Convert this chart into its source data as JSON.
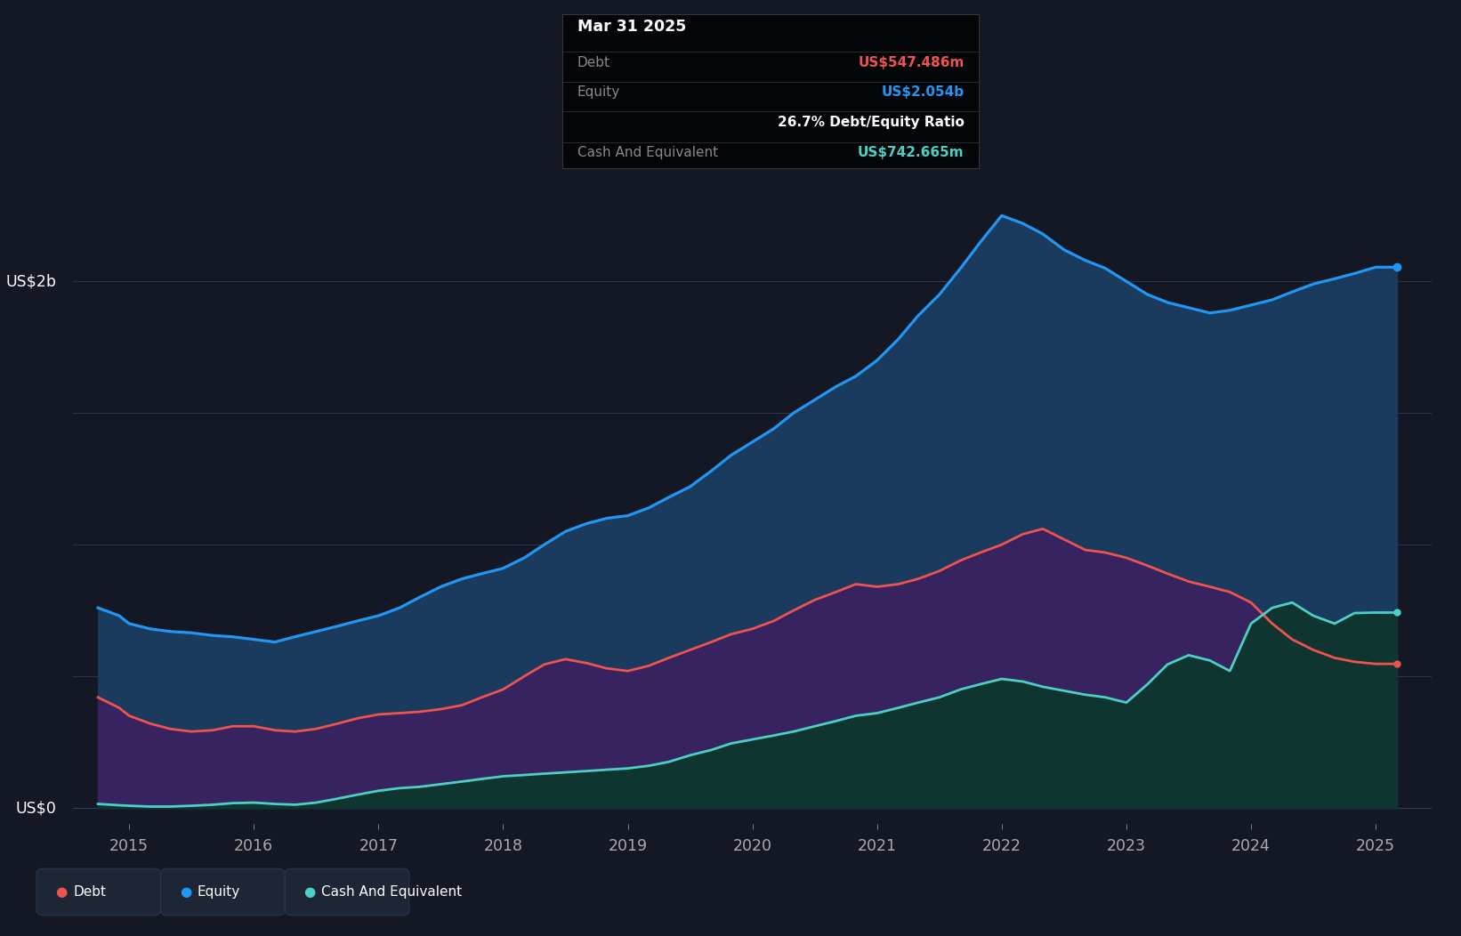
{
  "background_color": "#141824",
  "plot_bg_color": "#141824",
  "equity_color": "#2196f3",
  "debt_color": "#ef5350",
  "cash_color": "#4dd0c4",
  "grid_color": "#2a3550",
  "text_color_light": "#aaaaaa",
  "text_color_white": "#ffffff",
  "tooltip_bg": "#050505",
  "tooltip_title": "Mar 31 2025",
  "tooltip_debt_label": "Debt",
  "tooltip_debt_value": "US$547.486m",
  "tooltip_equity_label": "Equity",
  "tooltip_equity_value": "US$2.054b",
  "tooltip_ratio": "26.7% Debt/Equity Ratio",
  "tooltip_cash_label": "Cash And Equivalent",
  "tooltip_cash_value": "US$742.665m",
  "legend_debt": "Debt",
  "legend_equity": "Equity",
  "legend_cash": "Cash And Equivalent",
  "xlim": [
    2014.55,
    2025.45
  ],
  "ylim": [
    -60,
    2500
  ],
  "years": [
    2014.75,
    2014.92,
    2015.0,
    2015.17,
    2015.33,
    2015.5,
    2015.67,
    2015.83,
    2016.0,
    2016.17,
    2016.33,
    2016.5,
    2016.67,
    2016.83,
    2017.0,
    2017.17,
    2017.33,
    2017.5,
    2017.67,
    2017.83,
    2018.0,
    2018.17,
    2018.33,
    2018.5,
    2018.67,
    2018.83,
    2019.0,
    2019.17,
    2019.33,
    2019.5,
    2019.67,
    2019.83,
    2020.0,
    2020.17,
    2020.33,
    2020.5,
    2020.67,
    2020.83,
    2021.0,
    2021.17,
    2021.33,
    2021.5,
    2021.67,
    2021.83,
    2022.0,
    2022.17,
    2022.33,
    2022.5,
    2022.67,
    2022.83,
    2023.0,
    2023.17,
    2023.33,
    2023.5,
    2023.67,
    2023.83,
    2024.0,
    2024.17,
    2024.33,
    2024.5,
    2024.67,
    2024.83,
    2025.0,
    2025.17
  ],
  "equity": [
    760,
    730,
    700,
    680,
    670,
    665,
    655,
    650,
    640,
    630,
    650,
    670,
    690,
    710,
    730,
    760,
    800,
    840,
    870,
    890,
    910,
    950,
    1000,
    1050,
    1080,
    1100,
    1110,
    1140,
    1180,
    1220,
    1280,
    1340,
    1390,
    1440,
    1500,
    1550,
    1600,
    1640,
    1700,
    1780,
    1870,
    1950,
    2050,
    2150,
    2250,
    2220,
    2180,
    2120,
    2080,
    2050,
    2000,
    1950,
    1920,
    1900,
    1880,
    1890,
    1910,
    1930,
    1960,
    1990,
    2010,
    2030,
    2054,
    2054
  ],
  "debt": [
    420,
    380,
    350,
    320,
    300,
    290,
    295,
    310,
    310,
    295,
    290,
    300,
    320,
    340,
    355,
    360,
    365,
    375,
    390,
    420,
    450,
    500,
    545,
    565,
    550,
    530,
    520,
    540,
    570,
    600,
    630,
    660,
    680,
    710,
    750,
    790,
    820,
    850,
    840,
    850,
    870,
    900,
    940,
    970,
    1000,
    1040,
    1060,
    1020,
    980,
    970,
    950,
    920,
    890,
    860,
    840,
    820,
    780,
    700,
    640,
    600,
    570,
    555,
    547,
    547
  ],
  "cash": [
    15,
    10,
    8,
    5,
    5,
    8,
    12,
    18,
    20,
    15,
    12,
    20,
    35,
    50,
    65,
    75,
    80,
    90,
    100,
    110,
    120,
    125,
    130,
    135,
    140,
    145,
    150,
    160,
    175,
    200,
    220,
    245,
    260,
    275,
    290,
    310,
    330,
    350,
    360,
    380,
    400,
    420,
    450,
    470,
    490,
    480,
    460,
    445,
    430,
    420,
    400,
    470,
    545,
    580,
    560,
    520,
    700,
    760,
    780,
    730,
    700,
    740,
    742,
    742
  ]
}
